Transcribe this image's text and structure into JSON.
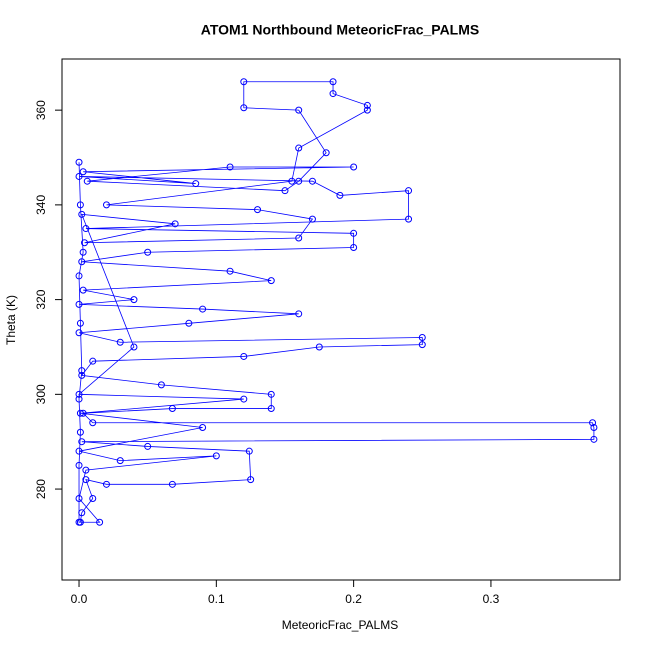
{
  "chart_data": {
    "type": "line",
    "title": "ATOM1 Northbound MeteoricFrac_PALMS",
    "x_label": "MeteoricFrac_PALMS",
    "y_label": "Theta (K)",
    "xlim": [
      -0.0124,
      0.394
    ],
    "ylim": [
      260.8,
      370.8
    ],
    "xticks": [
      {
        "value": 0,
        "label": "0.0"
      },
      0.1,
      0.2,
      0.3
    ],
    "yticks": [
      280,
      300,
      320,
      340,
      360
    ],
    "series": [
      {
        "color": "#0000ff",
        "x": [
          0.001,
          0.002,
          0.01,
          0.005,
          0.02,
          0.068,
          0.125,
          0.124,
          0.05,
          0.002,
          0.375,
          0.375,
          0.374,
          0.01,
          0.003,
          0.068,
          0.14,
          0.14,
          0.06,
          0.002,
          0.01,
          0.12,
          0.175,
          0.25,
          0.25,
          0.03,
          0.0,
          0.08,
          0.16,
          0.09,
          0.0,
          0.04,
          0.003,
          0.14,
          0.11,
          0.002,
          0.05,
          0.2,
          0.2,
          0.005,
          0.24,
          0.24,
          0.19,
          0.17,
          0.0,
          0.085,
          0.003,
          0.2,
          0.11,
          0.006,
          0.15,
          0.16,
          0.18,
          0.16,
          0.12,
          0.12,
          0.185,
          0.185,
          0.21,
          0.21,
          0.16,
          0.155,
          0.02,
          0.13,
          0.17,
          0.16,
          0.004,
          0.07,
          0.002,
          0.04,
          0.0,
          0.12,
          0.001,
          0.09,
          0.0,
          0.03,
          0.1,
          0.005,
          0.0,
          0.015,
          0.0,
          0.0,
          0.001,
          0.0,
          0.002,
          0.001,
          0.0,
          0.003,
          0.001,
          0.0
        ],
        "values": [
          273,
          275,
          278,
          282,
          281,
          281,
          282,
          288,
          289,
          290,
          290.5,
          293,
          294,
          294,
          296,
          297,
          297,
          300,
          302,
          304,
          307,
          308,
          310,
          310.5,
          312,
          311,
          313,
          315,
          317,
          318,
          319,
          320,
          322,
          324,
          326,
          328,
          330,
          331,
          334,
          335,
          337,
          343,
          342,
          345,
          346,
          344.5,
          347,
          348,
          348,
          345,
          343,
          345,
          351,
          360,
          360.5,
          366,
          366,
          363.5,
          361,
          360,
          352,
          345,
          340,
          339,
          337,
          333,
          332,
          336,
          338,
          310,
          300,
          299,
          296,
          293,
          288,
          286,
          287,
          284,
          278,
          273,
          273,
          285,
          292,
          299,
          305,
          315,
          325,
          330,
          340,
          349
        ]
      }
    ]
  }
}
